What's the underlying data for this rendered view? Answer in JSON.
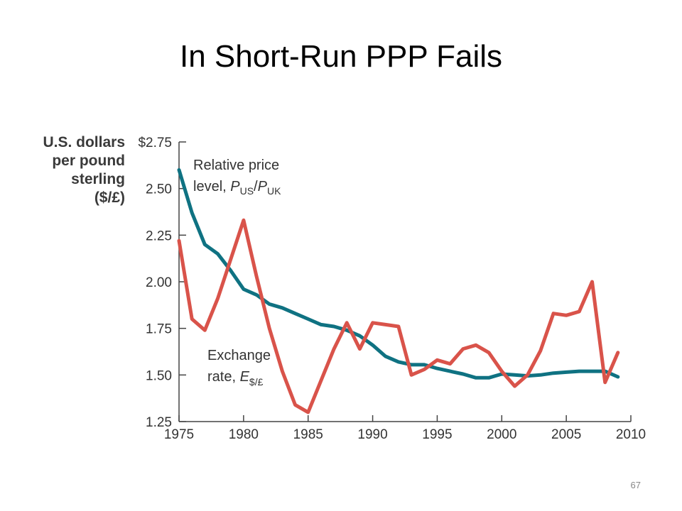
{
  "slide": {
    "title": "In Short-Run PPP Fails",
    "page_number": "67"
  },
  "chart_data": {
    "type": "line",
    "ylabel_lines": [
      "U.S. dollars",
      "per pound",
      "sterling",
      "($/£)"
    ],
    "xlim": [
      1975,
      2010
    ],
    "ylim": [
      1.25,
      2.75
    ],
    "x_ticks": [
      1975,
      1980,
      1985,
      1990,
      1995,
      2000,
      2005,
      2010
    ],
    "x_tick_labels": [
      "1975",
      "1980",
      "1985",
      "1990",
      "1995",
      "2000",
      "2005",
      "2010"
    ],
    "y_ticks": [
      1.25,
      1.5,
      1.75,
      2.0,
      2.25,
      2.5,
      2.75
    ],
    "y_tick_labels": [
      "1.25",
      "1.50",
      "1.75",
      "2.00",
      "2.25",
      "2.50",
      "$2.75"
    ],
    "series": [
      {
        "key": "relative_price",
        "label_line1": "Relative price",
        "label_line2_prefix": "level, ",
        "label_p": "P",
        "label_sub1": "US",
        "label_slash": "/",
        "label_sub2": "UK",
        "color": "#0f7282",
        "x": [
          1975,
          1976,
          1977,
          1978,
          1979,
          1980,
          1981,
          1982,
          1983,
          1984,
          1985,
          1986,
          1987,
          1988,
          1989,
          1990,
          1991,
          1992,
          1993,
          1994,
          1995,
          1996,
          1997,
          1998,
          1999,
          2000,
          2001,
          2002,
          2003,
          2004,
          2005,
          2006,
          2007,
          2008,
          2009
        ],
        "values": [
          2.6,
          2.37,
          2.2,
          2.15,
          2.06,
          1.96,
          1.93,
          1.88,
          1.86,
          1.83,
          1.8,
          1.77,
          1.76,
          1.74,
          1.71,
          1.66,
          1.6,
          1.57,
          1.555,
          1.555,
          1.535,
          1.52,
          1.505,
          1.485,
          1.485,
          1.505,
          1.5,
          1.495,
          1.5,
          1.51,
          1.515,
          1.52,
          1.52,
          1.52,
          1.49
        ]
      },
      {
        "key": "exchange_rate",
        "label_line1": "Exchange",
        "label_line2_prefix": "rate, ",
        "label_p": "E",
        "label_sub1": "$/£",
        "color": "#d9534a",
        "x": [
          1975,
          1976,
          1977,
          1978,
          1979,
          1980,
          1981,
          1982,
          1983,
          1984,
          1985,
          1986,
          1987,
          1988,
          1989,
          1990,
          1991,
          1992,
          1993,
          1994,
          1995,
          1996,
          1997,
          1998,
          1999,
          2000,
          2001,
          2002,
          2003,
          2004,
          2005,
          2006,
          2007,
          2008,
          2009
        ],
        "values": [
          2.22,
          1.8,
          1.74,
          1.91,
          2.12,
          2.33,
          2.03,
          1.75,
          1.52,
          1.34,
          1.3,
          1.47,
          1.64,
          1.78,
          1.64,
          1.78,
          1.77,
          1.76,
          1.5,
          1.53,
          1.58,
          1.56,
          1.64,
          1.66,
          1.62,
          1.52,
          1.44,
          1.5,
          1.63,
          1.83,
          1.82,
          1.84,
          2.0,
          1.46,
          1.62
        ]
      }
    ]
  }
}
